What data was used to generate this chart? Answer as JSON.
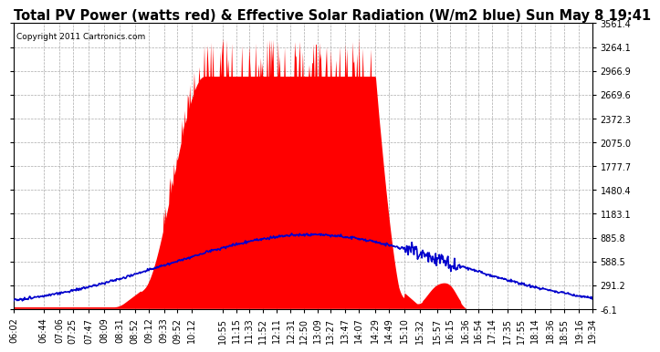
{
  "title": "Total PV Power (watts red) & Effective Solar Radiation (W/m2 blue) Sun May 8 19:41",
  "copyright": "Copyright 2011 Cartronics.com",
  "yticks": [
    3561.4,
    3264.1,
    2966.9,
    2669.6,
    2372.3,
    2075.0,
    1777.7,
    1480.4,
    1183.1,
    885.8,
    588.5,
    291.2,
    -6.1
  ],
  "ymin": -6.1,
  "ymax": 3561.4,
  "background_color": "#ffffff",
  "grid_color": "#aaaaaa",
  "fill_color": "#ff0000",
  "line_color": "#0000cc",
  "title_fontsize": 10.5,
  "copyright_fontsize": 6.5,
  "tick_fontsize": 7,
  "x_tick_labels": [
    "06:02",
    "06:44",
    "07:06",
    "07:25",
    "07:47",
    "08:09",
    "08:31",
    "08:52",
    "09:12",
    "09:33",
    "09:52",
    "10:12",
    "10:55",
    "11:15",
    "11:33",
    "11:52",
    "12:11",
    "12:31",
    "12:50",
    "13:09",
    "13:27",
    "13:47",
    "14:07",
    "14:29",
    "14:49",
    "15:10",
    "15:32",
    "15:57",
    "16:15",
    "16:36",
    "16:54",
    "17:14",
    "17:35",
    "17:55",
    "18:14",
    "18:36",
    "18:55",
    "19:16",
    "19:34"
  ]
}
